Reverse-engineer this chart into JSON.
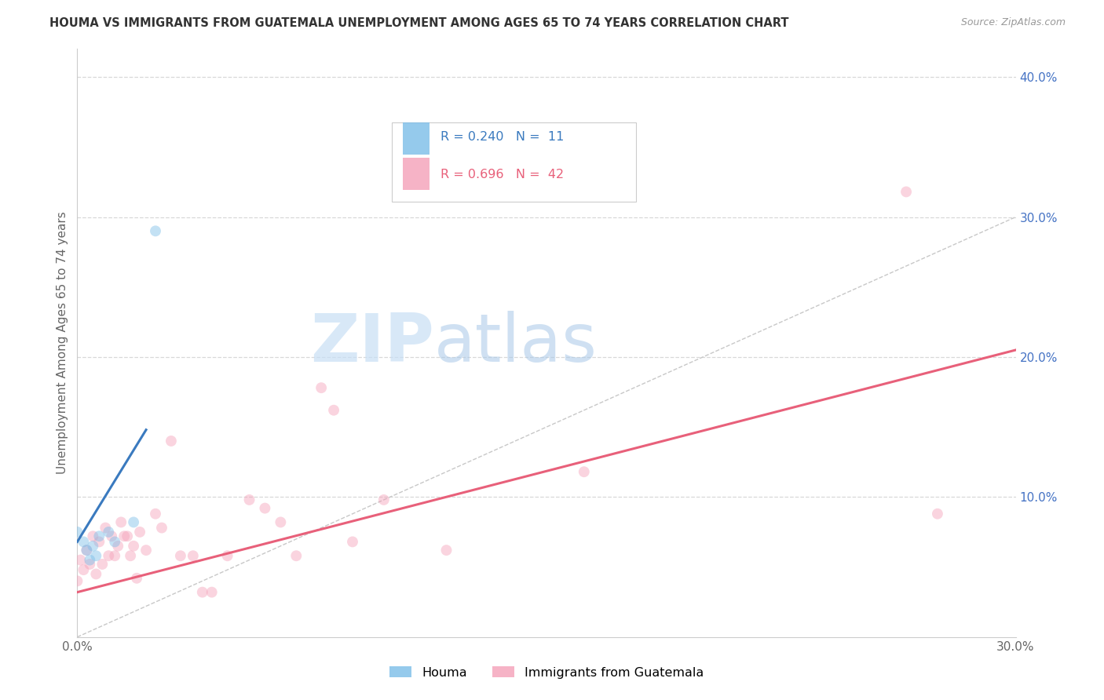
{
  "title": "HOUMA VS IMMIGRANTS FROM GUATEMALA UNEMPLOYMENT AMONG AGES 65 TO 74 YEARS CORRELATION CHART",
  "source": "Source: ZipAtlas.com",
  "ylabel": "Unemployment Among Ages 65 to 74 years",
  "xlim": [
    0.0,
    0.3
  ],
  "ylim": [
    0.0,
    0.42
  ],
  "xticks": [
    0.0,
    0.05,
    0.1,
    0.15,
    0.2,
    0.25,
    0.3
  ],
  "yticks": [
    0.0,
    0.1,
    0.2,
    0.3,
    0.4
  ],
  "xticklabels": [
    "0.0%",
    "",
    "",
    "",
    "",
    "",
    "30.0%"
  ],
  "yticklabels": [
    "",
    "10.0%",
    "20.0%",
    "30.0%",
    "40.0%"
  ],
  "watermark_zip": "ZIP",
  "watermark_atlas": "atlas",
  "legend_houma_R": "0.240",
  "legend_houma_N": "11",
  "legend_guatemala_R": "0.696",
  "legend_guatemala_N": "42",
  "houma_color": "#7bbde8",
  "guatemala_color": "#f4a0b8",
  "houma_line_color": "#3a7abf",
  "guatemala_line_color": "#e8607a",
  "diagonal_color": "#c8c8c8",
  "houma_points": [
    [
      0.0,
      0.075
    ],
    [
      0.002,
      0.068
    ],
    [
      0.003,
      0.062
    ],
    [
      0.004,
      0.055
    ],
    [
      0.005,
      0.065
    ],
    [
      0.006,
      0.058
    ],
    [
      0.007,
      0.072
    ],
    [
      0.01,
      0.075
    ],
    [
      0.012,
      0.068
    ],
    [
      0.018,
      0.082
    ],
    [
      0.025,
      0.29
    ]
  ],
  "guatemala_points": [
    [
      0.0,
      0.04
    ],
    [
      0.001,
      0.055
    ],
    [
      0.002,
      0.048
    ],
    [
      0.003,
      0.062
    ],
    [
      0.004,
      0.052
    ],
    [
      0.005,
      0.072
    ],
    [
      0.006,
      0.045
    ],
    [
      0.007,
      0.068
    ],
    [
      0.008,
      0.052
    ],
    [
      0.009,
      0.078
    ],
    [
      0.01,
      0.058
    ],
    [
      0.011,
      0.072
    ],
    [
      0.012,
      0.058
    ],
    [
      0.013,
      0.065
    ],
    [
      0.014,
      0.082
    ],
    [
      0.015,
      0.072
    ],
    [
      0.016,
      0.072
    ],
    [
      0.017,
      0.058
    ],
    [
      0.018,
      0.065
    ],
    [
      0.019,
      0.042
    ],
    [
      0.02,
      0.075
    ],
    [
      0.022,
      0.062
    ],
    [
      0.025,
      0.088
    ],
    [
      0.027,
      0.078
    ],
    [
      0.03,
      0.14
    ],
    [
      0.033,
      0.058
    ],
    [
      0.037,
      0.058
    ],
    [
      0.04,
      0.032
    ],
    [
      0.043,
      0.032
    ],
    [
      0.048,
      0.058
    ],
    [
      0.055,
      0.098
    ],
    [
      0.06,
      0.092
    ],
    [
      0.065,
      0.082
    ],
    [
      0.07,
      0.058
    ],
    [
      0.078,
      0.178
    ],
    [
      0.082,
      0.162
    ],
    [
      0.088,
      0.068
    ],
    [
      0.098,
      0.098
    ],
    [
      0.118,
      0.062
    ],
    [
      0.162,
      0.118
    ],
    [
      0.265,
      0.318
    ],
    [
      0.275,
      0.088
    ]
  ],
  "houma_line_x": [
    0.0,
    0.022
  ],
  "houma_line_y": [
    0.068,
    0.148
  ],
  "guatemala_line_x": [
    0.0,
    0.3
  ],
  "guatemala_line_y": [
    0.032,
    0.205
  ],
  "diagonal_line_x": [
    0.0,
    0.3
  ],
  "diagonal_line_y": [
    0.0,
    0.3
  ],
  "background_color": "#ffffff",
  "grid_color": "#d8d8d8",
  "tick_color": "#4472c4",
  "marker_size": 100,
  "marker_alpha": 0.45
}
